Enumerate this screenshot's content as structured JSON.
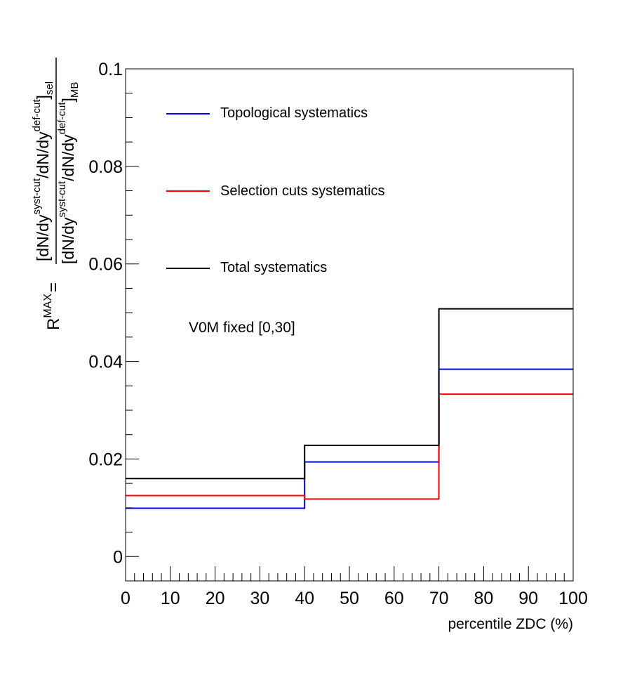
{
  "chart_data": {
    "type": "line",
    "title": "",
    "xlabel": "percentile ZDC (%)",
    "ylabel": {
      "lhs": "R",
      "lhs_sup": "MAX",
      "eq": "=",
      "num_open": "[dN/dy",
      "num_sup1": "syst-cut",
      "num_mid": "/dN/dy",
      "num_sup2": "def-cut",
      "num_close": "]",
      "num_sub": "sel",
      "den_open": "[dN/dy",
      "den_sup1": "syst-cut",
      "den_mid": "/dN/dy",
      "den_sup2": "def-cut",
      "den_close": "]",
      "den_sub": "MB"
    },
    "xlim": [
      0,
      100
    ],
    "ylim": [
      -0.005,
      0.1
    ],
    "x_ticks": [
      0,
      10,
      20,
      30,
      40,
      50,
      60,
      70,
      80,
      90,
      100
    ],
    "x_tick_labels": [
      "0",
      "10",
      "20",
      "30",
      "40",
      "50",
      "60",
      "70",
      "80",
      "90",
      "100"
    ],
    "y_ticks": [
      0,
      0.02,
      0.04,
      0.06,
      0.08,
      0.1
    ],
    "y_tick_labels": [
      "0",
      "0.02",
      "0.04",
      "0.06",
      "0.08",
      "0.1"
    ],
    "bin_edges": [
      0,
      40,
      70,
      100
    ],
    "grid": false,
    "legend_position": "top-left",
    "annotation": "V0M fixed [0,30]",
    "series": [
      {
        "name": "Topological systematics",
        "color": "#0000ff",
        "values": [
          0.0099,
          0.0194,
          0.0384
        ]
      },
      {
        "name": "Selection cuts systematics",
        "color": "#ff0000",
        "values": [
          0.0125,
          0.0118,
          0.0333
        ]
      },
      {
        "name": "Total systematics",
        "color": "#000000",
        "values": [
          0.016,
          0.0228,
          0.0508
        ]
      }
    ]
  }
}
